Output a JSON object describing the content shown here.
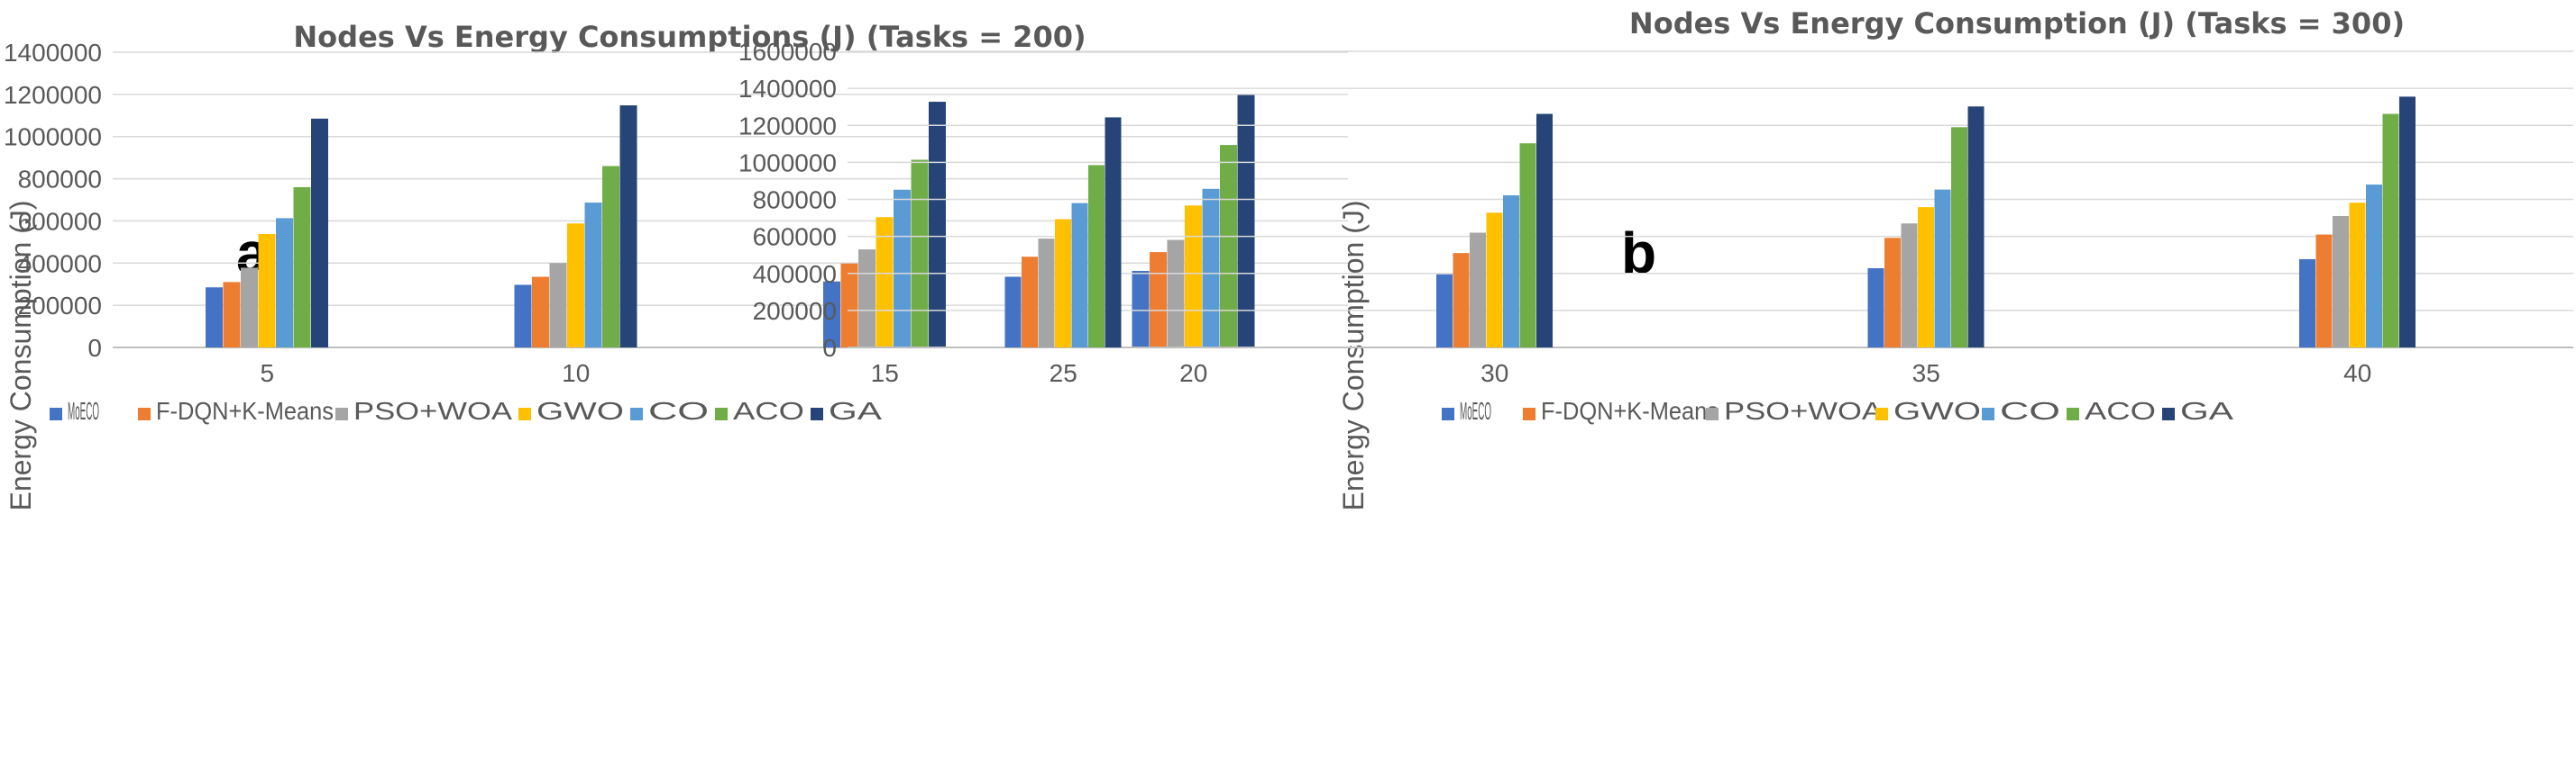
{
  "figure": {
    "series_colors": [
      "#4472c4",
      "#ed7d31",
      "#a5a5a5",
      "#ffc000",
      "#5b9bd5",
      "#70ad47",
      "#264478"
    ]
  },
  "chart_data": [
    {
      "type": "bar",
      "panel_label": "a",
      "title": "Nodes Vs Energy Consumptions (J) (Tasks = 200)",
      "xlabel": "",
      "ylabel": "Energy Consumption (J)",
      "categories": [
        "5",
        "10",
        "15",
        "20"
      ],
      "ylim": [
        0,
        1400000
      ],
      "yticks": [
        "0",
        "200000",
        "400000",
        "600000",
        "800000",
        "1000000",
        "1200000",
        "1400000"
      ],
      "grid": true,
      "legend_position": "bottom",
      "series": [
        {
          "name": "MoECO",
          "values": [
            285000,
            297000,
            313000,
            363000
          ]
        },
        {
          "name": "F-DQN+K-Means",
          "values": [
            310000,
            335000,
            398000,
            452000
          ]
        },
        {
          "name": "PSO+WOA",
          "values": [
            378000,
            400000,
            465000,
            510000
          ]
        },
        {
          "name": "GWO",
          "values": [
            538000,
            588000,
            618000,
            673000
          ]
        },
        {
          "name": "CO",
          "values": [
            613000,
            687000,
            748000,
            752000
          ]
        },
        {
          "name": "ACO",
          "values": [
            760000,
            860000,
            890000,
            960000
          ]
        },
        {
          "name": "GA",
          "values": [
            1085000,
            1148000,
            1165000,
            1197000
          ]
        }
      ]
    },
    {
      "type": "bar",
      "panel_label": "b",
      "title": "Nodes Vs Energy Consumption (J) (Tasks = 300)",
      "xlabel": "",
      "ylabel": "Energy Consumption (J)",
      "categories": [
        "25",
        "30",
        "35",
        "40"
      ],
      "ylim": [
        0,
        1600000
      ],
      "yticks": [
        "0",
        "200000",
        "400000",
        "600000",
        "800000",
        "1000000",
        "1200000",
        "1400000",
        "1600000"
      ],
      "grid": true,
      "legend_position": "bottom",
      "series": [
        {
          "name": "MoECO",
          "values": [
            382000,
            395000,
            428000,
            477000
          ]
        },
        {
          "name": "F-DQN+K-Means",
          "values": [
            490000,
            510000,
            592000,
            610000
          ]
        },
        {
          "name": "PSO+WOA",
          "values": [
            588000,
            620000,
            670000,
            710000
          ]
        },
        {
          "name": "GWO",
          "values": [
            693000,
            728000,
            758000,
            782000
          ]
        },
        {
          "name": "CO",
          "values": [
            780000,
            822000,
            853000,
            880000
          ]
        },
        {
          "name": "ACO",
          "values": [
            985000,
            1103000,
            1190000,
            1262000
          ]
        },
        {
          "name": "GA",
          "values": [
            1243000,
            1262000,
            1302000,
            1355000
          ]
        }
      ]
    }
  ]
}
